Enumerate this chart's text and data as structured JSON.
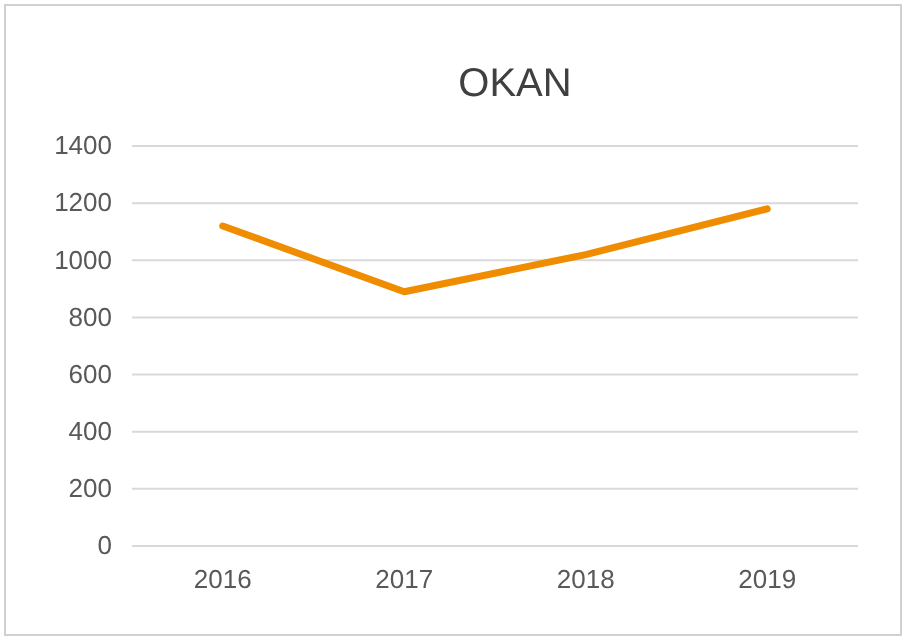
{
  "chart_data": {
    "type": "line",
    "title": "OKAN",
    "categories": [
      "2016",
      "2017",
      "2018",
      "2019"
    ],
    "series": [
      {
        "color": "#f08c00",
        "values": [
          1120,
          890,
          1020,
          1180
        ]
      }
    ],
    "ylim": [
      0,
      1400
    ],
    "yticks": [
      0,
      200,
      400,
      600,
      800,
      1000,
      1200,
      1400
    ],
    "grid": "y",
    "marker": "none",
    "line_style": "solid"
  }
}
